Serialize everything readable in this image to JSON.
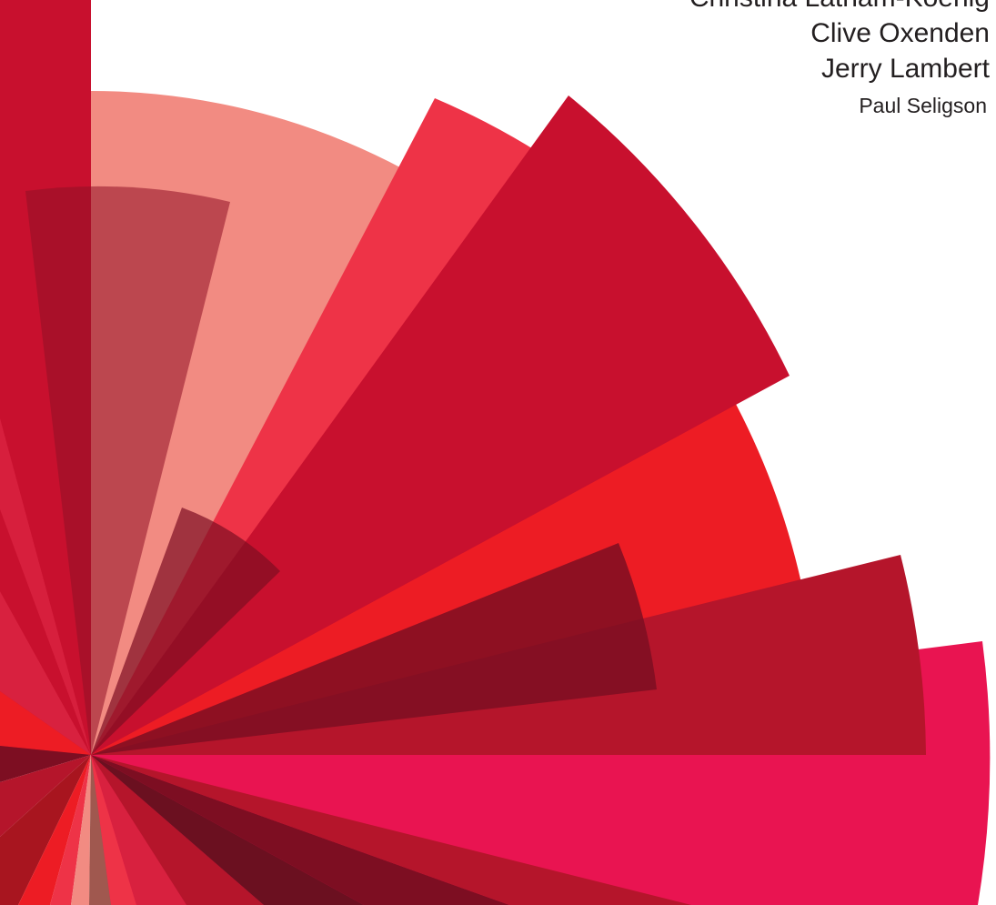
{
  "credits": {
    "authors": [
      "Christina Latham-Koenig",
      "Clive Oxenden",
      "Jerry Lambert"
    ],
    "contributor": "Paul Seligson"
  },
  "artwork": {
    "name": "radial-burst-graphic",
    "palette": [
      "#c8102e",
      "#ee3347",
      "#f28b82",
      "#ed1c24",
      "#b5152b",
      "#e91451",
      "#7d0e22",
      "#8f1026",
      "#a0584f"
    ]
  }
}
